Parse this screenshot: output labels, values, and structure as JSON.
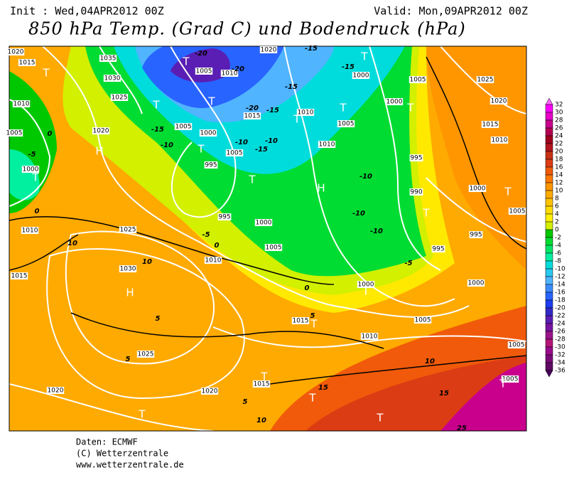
{
  "header": {
    "init": "Init : Wed,04APR2012 00Z",
    "valid": "Valid: Mon,09APR2012 00Z",
    "title": "850 hPa Temp. (Grad C) und Bodendruck (hPa)"
  },
  "footer": {
    "source": "Daten: ECMWF",
    "copyright": "(C) Wetterzentrale",
    "url": "www.wetterzentrale.de"
  },
  "colorbar": {
    "levels": [
      32,
      30,
      28,
      26,
      24,
      22,
      20,
      18,
      16,
      14,
      12,
      10,
      8,
      6,
      4,
      2,
      0,
      -2,
      -4,
      -6,
      -8,
      -10,
      -12,
      -14,
      -16,
      -18,
      -20,
      -22,
      -24,
      -26,
      -28,
      -30,
      -32,
      -34,
      -36
    ],
    "colors": [
      "#ff66ff",
      "#ff00ff",
      "#e600c8",
      "#c8008c",
      "#b40050",
      "#a0001e",
      "#b4141e",
      "#c83214",
      "#dc3c14",
      "#f05a0a",
      "#ff7800",
      "#ff9600",
      "#ffaa00",
      "#ffc300",
      "#ffdc00",
      "#fff000",
      "#d2f000",
      "#00c800",
      "#00dc32",
      "#00e664",
      "#00f0a0",
      "#00dcdc",
      "#28c8f0",
      "#50b4ff",
      "#3c8cff",
      "#2864ff",
      "#1e3cf0",
      "#3228c8",
      "#5a1eb4",
      "#7814a0",
      "#9a148c",
      "#b41478",
      "#9a0a8c",
      "#7a0a78",
      "#600a64",
      "#46005a"
    ]
  },
  "map": {
    "labels": [
      "1020",
      "1015",
      "T",
      "1035",
      "1030",
      "1025",
      "1010",
      "T",
      "1020",
      "H",
      "0",
      "1005",
      "-5",
      "1000",
      "T",
      "0",
      "1010",
      "1025",
      "10",
      "1015",
      "1030",
      "H",
      "10",
      "5",
      "1025",
      "5",
      "1020",
      "T",
      "1020",
      "5",
      "10",
      "T",
      "1015",
      "1015",
      "5",
      "T",
      "1010",
      "1005",
      "0",
      "1000",
      "T",
      "1000",
      "995",
      "1005",
      "1000",
      "T",
      "1010",
      "1015",
      "1020",
      "1025",
      "1000",
      "1005",
      "T",
      "995",
      "990",
      "T",
      "995",
      "15",
      "T",
      "15",
      "10",
      "T",
      "1005",
      "T",
      "1005",
      "25",
      "-5",
      "-10",
      "-10",
      "-10",
      "H",
      "1010",
      "1005",
      "T",
      "1000",
      "T",
      "-15",
      "1010",
      "T",
      "-15",
      "-15",
      "-15",
      "1020",
      "-20",
      "T",
      "1005",
      "1010",
      "-20",
      "-20",
      "1015",
      "T",
      "-15",
      "1005",
      "1000",
      "-10",
      "T",
      "1005",
      "-10",
      "-15",
      "-10",
      "995",
      "T",
      "995",
      "1000",
      "-5",
      "0",
      "1005",
      "1010"
    ]
  }
}
